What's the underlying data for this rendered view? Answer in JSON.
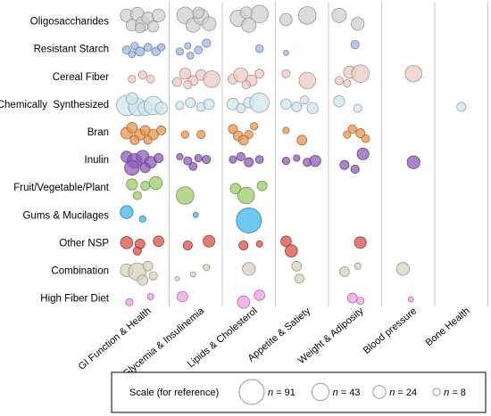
{
  "chart_data": {
    "type": "scatter",
    "rows": [
      "Oligosaccharides",
      "Resistant Starch",
      "Cereal Fiber",
      "Chemically  Synthesized",
      "Bran",
      "Inulin",
      "Fruit/Vegetable/Plant",
      "Gums & Mucilages",
      "Other NSP",
      "Combination",
      "High Fiber Diet"
    ],
    "columns": [
      "GI Function & Health",
      "Glycemia & Insulinemia",
      "Lipids & Cholesterol",
      "Appetite & Satiety",
      "Weight & Adiposity",
      "Blood pressure",
      "Bone Health"
    ],
    "colors": {
      "Oligosaccharides": "#d0d0d0",
      "Resistant Starch": "#9fb8e4",
      "Cereal Fiber": "#efc9c4",
      "Chemically  Synthesized": "#cfe5ee",
      "Bran": "#e8964f",
      "Inulin": "#8c5cb8",
      "Fruit/Vegetable/Plant": "#9ccc6a",
      "Gums & Mucilages": "#3fb6ee",
      "Other NSP": "#d9504c",
      "Combination": "#d8d2bf",
      "High Fiber Diet": "#ef9ce6"
    },
    "bubbles": [
      [
        [
          [
            0.2,
            -0.2,
            24
          ],
          [
            0.3,
            0.15,
            20
          ],
          [
            0.4,
            -0.25,
            26
          ],
          [
            0.5,
            0.1,
            30
          ],
          [
            0.6,
            -0.1,
            22
          ],
          [
            0.7,
            0.2,
            18
          ],
          [
            0.8,
            -0.2,
            24
          ],
          [
            0.45,
            0.25,
            14
          ]
        ],
        [
          [
            0.3,
            -0.2,
            40
          ],
          [
            0.45,
            0.15,
            30
          ],
          [
            0.6,
            -0.15,
            35
          ],
          [
            0.75,
            0.1,
            28
          ],
          [
            0.55,
            -0.3,
            18
          ]
        ],
        [
          [
            0.3,
            -0.1,
            38
          ],
          [
            0.5,
            0.15,
            30
          ],
          [
            0.7,
            -0.25,
            45
          ],
          [
            0.45,
            -0.3,
            20
          ]
        ],
        [
          [
            0.2,
            -0.05,
            22
          ],
          [
            0.6,
            -0.2,
            45
          ]
        ],
        [
          [
            0.2,
            -0.2,
            30
          ],
          [
            0.55,
            0.1,
            24
          ]
        ],
        [],
        []
      ],
      [
        [
          [
            0.2,
            0.05,
            10
          ],
          [
            0.35,
            -0.1,
            8
          ],
          [
            0.45,
            0.1,
            12
          ],
          [
            0.6,
            -0.05,
            9
          ],
          [
            0.75,
            0.1,
            11
          ],
          [
            0.85,
            -0.05,
            8
          ],
          [
            0.3,
            0.2,
            7
          ]
        ],
        [
          [
            0.2,
            0.1,
            8
          ],
          [
            0.35,
            -0.1,
            6
          ],
          [
            0.55,
            0.05,
            9
          ],
          [
            0.7,
            -0.2,
            10
          ],
          [
            0.4,
            0.25,
            7
          ]
        ],
        [
          [
            0.7,
            0.0,
            9
          ]
        ],
        [
          [
            0.2,
            0.15,
            4
          ]
        ],
        [
          [
            0.5,
            -0.15,
            10
          ]
        ],
        [],
        []
      ],
      [
        [
          [
            0.3,
            0.1,
            8
          ],
          [
            0.5,
            -0.05,
            10
          ],
          [
            0.65,
            0.1,
            9
          ]
        ],
        [
          [
            0.15,
            0.2,
            12
          ],
          [
            0.3,
            -0.1,
            18
          ],
          [
            0.45,
            0.15,
            14
          ],
          [
            0.6,
            -0.05,
            16
          ],
          [
            0.8,
            0.1,
            40
          ],
          [
            0.35,
            0.3,
            10
          ]
        ],
        [
          [
            0.2,
            0.1,
            14
          ],
          [
            0.35,
            -0.05,
            30
          ],
          [
            0.55,
            0.15,
            18
          ],
          [
            0.7,
            -0.1,
            12
          ],
          [
            0.45,
            0.3,
            10
          ]
        ],
        [
          [
            0.2,
            -0.1,
            10
          ],
          [
            0.6,
            0.15,
            40
          ]
        ],
        [
          [
            0.2,
            0.15,
            10
          ],
          [
            0.4,
            -0.15,
            22
          ],
          [
            0.6,
            -0.1,
            45
          ],
          [
            0.35,
            0.25,
            8
          ]
        ],
        [
          [
            0.6,
            -0.1,
            40
          ]
        ],
        []
      ],
      [
        [
          [
            0.2,
            0.05,
            60
          ],
          [
            0.4,
            0.1,
            45
          ],
          [
            0.55,
            0.15,
            30
          ],
          [
            0.7,
            0.05,
            50
          ],
          [
            0.85,
            0.15,
            22
          ],
          [
            0.3,
            -0.2,
            20
          ]
        ],
        [
          [
            0.2,
            0.05,
            10
          ],
          [
            0.4,
            -0.05,
            14
          ],
          [
            0.6,
            0.1,
            12
          ],
          [
            0.75,
            0.0,
            16
          ]
        ],
        [
          [
            0.2,
            0.0,
            20
          ],
          [
            0.35,
            0.15,
            12
          ],
          [
            0.5,
            -0.05,
            16
          ],
          [
            0.7,
            -0.05,
            55
          ]
        ],
        [
          [
            0.2,
            0.0,
            16
          ],
          [
            0.4,
            0.1,
            14
          ],
          [
            0.55,
            -0.15,
            10
          ],
          [
            0.7,
            0.15,
            18
          ]
        ],
        [
          [
            0.2,
            -0.1,
            18
          ],
          [
            0.55,
            0.15,
            10
          ]
        ],
        [],
        [
          [
            0.5,
            0.1,
            12
          ]
        ]
      ],
      [
        [
          [
            0.2,
            0.05,
            20
          ],
          [
            0.3,
            -0.15,
            16
          ],
          [
            0.45,
            0.1,
            18
          ],
          [
            0.55,
            -0.05,
            14
          ],
          [
            0.7,
            0.1,
            16
          ],
          [
            0.85,
            -0.05,
            12
          ],
          [
            0.35,
            0.3,
            12
          ],
          [
            0.6,
            0.3,
            10
          ]
        ],
        [
          [
            0.3,
            0.1,
            8
          ],
          [
            0.6,
            0.1,
            10
          ]
        ],
        [
          [
            0.2,
            -0.1,
            12
          ],
          [
            0.3,
            0.15,
            14
          ],
          [
            0.5,
            0.1,
            10
          ],
          [
            0.6,
            -0.2,
            8
          ],
          [
            0.4,
            0.3,
            14
          ]
        ],
        [
          [
            0.2,
            -0.05,
            6
          ],
          [
            0.5,
            0.3,
            14
          ]
        ],
        [
          [
            0.35,
            0.1,
            8
          ],
          [
            0.45,
            -0.1,
            10
          ],
          [
            0.6,
            0.05,
            12
          ],
          [
            0.7,
            0.25,
            9
          ]
        ],
        [],
        []
      ],
      [
        [
          [
            0.2,
            -0.1,
            18
          ],
          [
            0.35,
            0.05,
            30
          ],
          [
            0.5,
            -0.1,
            24
          ],
          [
            0.65,
            0.1,
            20
          ],
          [
            0.8,
            -0.05,
            12
          ],
          [
            0.3,
            0.3,
            32
          ],
          [
            0.55,
            0.3,
            14
          ]
        ],
        [
          [
            0.2,
            -0.1,
            6
          ],
          [
            0.35,
            0.05,
            10
          ],
          [
            0.55,
            -0.05,
            8
          ],
          [
            0.7,
            0.0,
            10
          ],
          [
            0.45,
            0.25,
            9
          ]
        ],
        [
          [
            0.2,
            0.0,
            8
          ],
          [
            0.35,
            -0.1,
            10
          ],
          [
            0.5,
            0.1,
            12
          ],
          [
            0.7,
            0.0,
            9
          ]
        ],
        [
          [
            0.2,
            0.05,
            8
          ],
          [
            0.4,
            -0.05,
            6
          ],
          [
            0.6,
            0.1,
            10
          ],
          [
            0.75,
            0.05,
            18
          ]
        ],
        [
          [
            0.3,
            0.2,
            12
          ],
          [
            0.5,
            0.35,
            10
          ],
          [
            0.65,
            -0.2,
            20
          ]
        ],
        [
          [
            0.6,
            0.1,
            24
          ]
        ],
        []
      ],
      [
        [
          [
            0.3,
            -0.1,
            18
          ],
          [
            0.55,
            -0.05,
            12
          ],
          [
            0.75,
            -0.15,
            24
          ],
          [
            0.4,
            0.3,
            10
          ]
        ],
        [
          [
            0.3,
            0.3,
            45
          ]
        ],
        [
          [
            0.25,
            0.05,
            16
          ],
          [
            0.45,
            0.3,
            40
          ],
          [
            0.75,
            -0.05,
            14
          ]
        ],
        [],
        [],
        [],
        []
      ],
      [
        [
          [
            0.2,
            -0.1,
            24
          ],
          [
            0.5,
            0.15,
            6
          ]
        ],
        [
          [
            0.5,
            0.0,
            4
          ]
        ],
        [
          [
            0.5,
            0.2,
            91
          ]
        ],
        [],
        [],
        [],
        []
      ],
      [
        [
          [
            0.2,
            0.0,
            22
          ],
          [
            0.45,
            0.05,
            14
          ],
          [
            0.8,
            -0.05,
            16
          ],
          [
            0.4,
            0.3,
            10
          ]
        ],
        [
          [
            0.35,
            0.1,
            12
          ],
          [
            0.75,
            -0.05,
            20
          ]
        ],
        [
          [
            0.4,
            0.1,
            12
          ],
          [
            0.7,
            0.05,
            6
          ]
        ],
        [
          [
            0.2,
            -0.05,
            16
          ],
          [
            0.3,
            0.3,
            22
          ]
        ],
        [
          [
            0.6,
            0.0,
            20
          ]
        ],
        [],
        []
      ],
      [
        [
          [
            0.2,
            0.0,
            24
          ],
          [
            0.4,
            0.05,
            45
          ],
          [
            0.6,
            -0.15,
            14
          ],
          [
            0.7,
            0.2,
            10
          ],
          [
            0.5,
            0.35,
            16
          ]
        ],
        [
          [
            0.15,
            0.3,
            3
          ],
          [
            0.45,
            0.15,
            4
          ],
          [
            0.7,
            -0.1,
            6
          ]
        ],
        [
          [
            0.5,
            -0.05,
            24
          ]
        ],
        [
          [
            0.4,
            -0.15,
            14
          ],
          [
            0.45,
            0.3,
            12
          ]
        ],
        [
          [
            0.3,
            0.05,
            14
          ],
          [
            0.55,
            -0.15,
            6
          ]
        ],
        [
          [
            0.4,
            -0.05,
            24
          ]
        ],
        []
      ],
      [
        [
          [
            0.25,
            0.15,
            8
          ],
          [
            0.65,
            -0.05,
            6
          ]
        ],
        [
          [
            0.25,
            -0.05,
            16
          ]
        ],
        [
          [
            0.4,
            0.15,
            22
          ],
          [
            0.7,
            -0.1,
            16
          ]
        ],
        [],
        [
          [
            0.45,
            0.0,
            14
          ],
          [
            0.6,
            0.1,
            8
          ]
        ],
        [
          [
            0.55,
            0.05,
            4
          ]
        ],
        []
      ]
    ],
    "scale": {
      "title": "Scale (for reference)",
      "entries": [
        {
          "n": 91,
          "label_prefix": "n",
          "label_suffix": " = 91"
        },
        {
          "n": 43,
          "label_prefix": "n",
          "label_suffix": " = 43"
        },
        {
          "n": 24,
          "label_prefix": "n",
          "label_suffix": " = 24"
        },
        {
          "n": 8,
          "label_prefix": "n",
          "label_suffix": " = 8"
        }
      ]
    }
  }
}
